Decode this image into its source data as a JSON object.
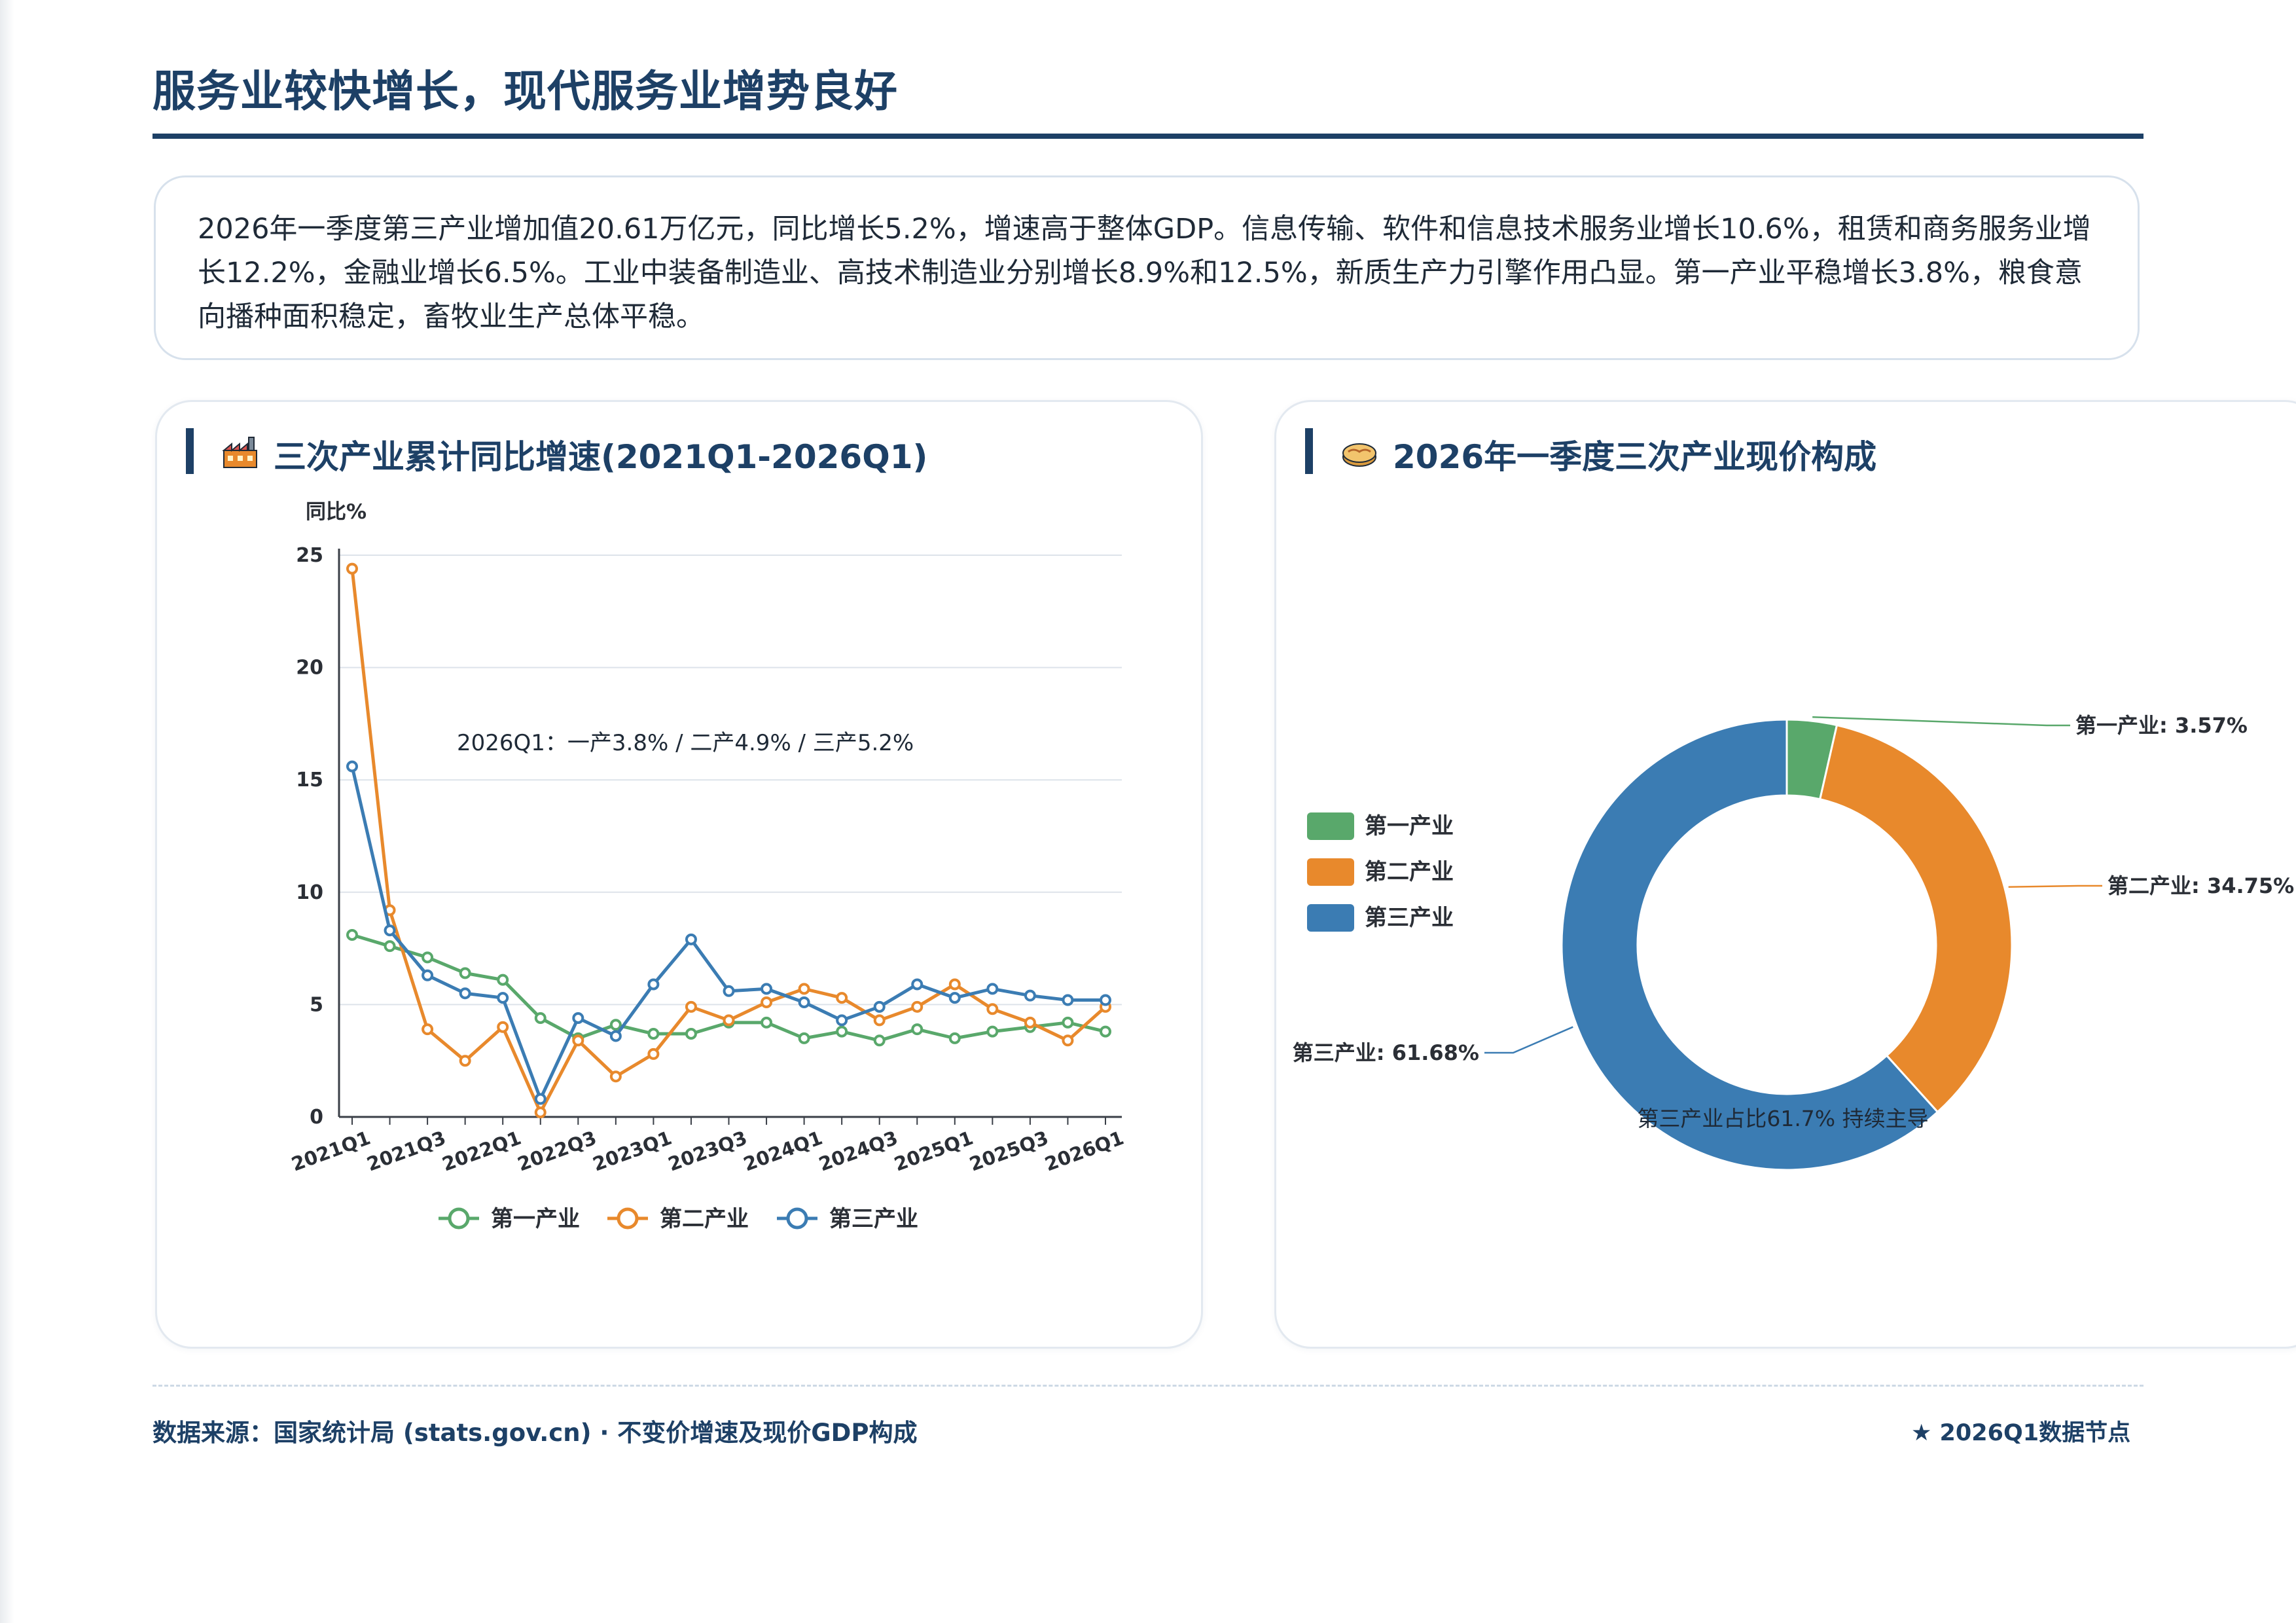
{
  "header": {
    "title": "服务业较快增长，现代服务业增势良好"
  },
  "summary": {
    "text": "2026年一季度第三产业增加值20.61万亿元，同比增长5.2%，增速高于整体GDP。信息传输、软件和信息技术服务业增长10.6%，租赁和商务服务业增长12.2%，金融业增长6.5%。工业中装备制造业、高技术制造业分别增长8.9%和12.5%，新质生产力引擎作用凸显。第一产业平稳增长3.8%，粮食意向播种面积稳定，畜牧业生产总体平稳。"
  },
  "panels": {
    "line": {
      "title": "三次产业累计同比增速(2021Q1-2026Q1)",
      "icon": "factory-icon"
    },
    "donut": {
      "title": "2026年一季度三次产业现价构成",
      "icon": "pie-icon"
    }
  },
  "colors": {
    "primary": "#59a86b",
    "secondary": "#e8892c",
    "tertiary": "#3b7cb3",
    "brand": "#1d4066"
  },
  "chart_data": [
    {
      "type": "line",
      "ylabel": "同比%",
      "ylim": [
        0,
        25
      ],
      "yticks": [
        0,
        5,
        10,
        15,
        20,
        25
      ],
      "grid": true,
      "legend_position": "bottom",
      "x": [
        "2021Q1",
        "2021Q2",
        "2021Q3",
        "2021Q4",
        "2022Q1",
        "2022Q2",
        "2022Q3",
        "2022Q4",
        "2023Q1",
        "2023Q2",
        "2023Q3",
        "2023Q4",
        "2024Q1",
        "2024Q2",
        "2024Q3",
        "2024Q4",
        "2025Q1",
        "2025Q2",
        "2025Q3",
        "2025Q4",
        "2026Q1"
      ],
      "tick_labels": [
        "2021Q1",
        "2021Q3",
        "2022Q1",
        "2022Q3",
        "2023Q1",
        "2023Q3",
        "2024Q1",
        "2024Q3",
        "2025Q1",
        "2025Q3",
        "2026Q1"
      ],
      "series": [
        {
          "name": "第一产业",
          "color": "#59a86b",
          "values": [
            8.1,
            7.6,
            7.1,
            6.4,
            6.1,
            4.4,
            3.5,
            4.1,
            3.7,
            3.7,
            4.2,
            4.2,
            3.5,
            3.8,
            3.4,
            3.9,
            3.5,
            3.8,
            4.0,
            4.2,
            3.8
          ]
        },
        {
          "name": "第二产业",
          "color": "#e8892c",
          "values": [
            24.4,
            9.2,
            3.9,
            2.5,
            4.0,
            0.2,
            3.4,
            1.8,
            2.8,
            4.9,
            4.3,
            5.1,
            5.7,
            5.3,
            4.3,
            4.9,
            5.9,
            4.8,
            4.2,
            3.4,
            4.9
          ]
        },
        {
          "name": "第三产业",
          "color": "#3b7cb3",
          "values": [
            15.6,
            8.3,
            6.3,
            5.5,
            5.3,
            0.8,
            4.4,
            3.6,
            5.9,
            7.9,
            5.6,
            5.7,
            5.1,
            4.3,
            4.9,
            5.9,
            5.3,
            5.7,
            5.4,
            5.2,
            5.2
          ]
        }
      ],
      "annotation": "2026Q1：一产3.8% / 二产4.9% / 三产5.2%"
    },
    {
      "type": "pie",
      "variant": "donut",
      "legend_position": "left",
      "slices": [
        {
          "name": "第一产业",
          "value": 3.57,
          "label": "第一产业: 3.57%",
          "color": "#59a86b"
        },
        {
          "name": "第二产业",
          "value": 34.75,
          "label": "第二产业: 34.75%",
          "color": "#e8892c"
        },
        {
          "name": "第三产业",
          "value": 61.68,
          "label": "第三产业: 61.68%",
          "color": "#3b7cb3"
        }
      ],
      "annotation": "第三产业占比61.7% 持续主导"
    }
  ],
  "footer": {
    "source": "数据来源：国家统计局 (stats.gov.cn) · 不变价增速及现价GDP构成",
    "note": "★ 2026Q1数据节点"
  }
}
